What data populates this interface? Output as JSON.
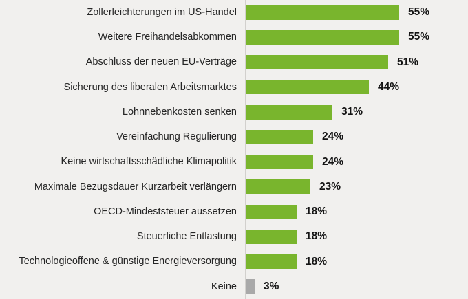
{
  "chart_data": {
    "type": "bar",
    "orientation": "horizontal",
    "title": "",
    "xlabel": "",
    "ylabel": "",
    "xlim": [
      0,
      60
    ],
    "grid": false,
    "legend": null,
    "categories": [
      "Zollerleichterungen im US-Handel",
      "Weitere Freihandelsabkommen",
      "Abschluss der neuen EU-Verträge",
      "Sicherung des liberalen Arbeitsmarktes",
      "Lohnnebenkosten senken",
      "Vereinfachung Regulierung",
      "Keine wirtschaftsschädliche Klimapolitik",
      "Maximale Bezugsdauer Kurzarbeit verlängern",
      "OECD-Mindeststeuer aussetzen",
      "Steuerliche Entlastung",
      "Technologieoffene & günstige Energieversorgung",
      "Keine"
    ],
    "values": [
      55,
      55,
      51,
      44,
      31,
      24,
      24,
      23,
      18,
      18,
      18,
      3
    ],
    "value_labels": [
      "55%",
      "55%",
      "51%",
      "44%",
      "31%",
      "24%",
      "24%",
      "23%",
      "18%",
      "18%",
      "18%",
      "3%"
    ],
    "bar_colors": [
      "#79b52d",
      "#79b52d",
      "#79b52d",
      "#79b52d",
      "#79b52d",
      "#79b52d",
      "#79b52d",
      "#79b52d",
      "#79b52d",
      "#79b52d",
      "#79b52d",
      "#a9a9a9"
    ]
  },
  "colors": {
    "bar_green": "#79b52d",
    "bar_gray": "#a9a9a9",
    "background": "#f1f0ee",
    "axis_line": "#d2d0cd",
    "label_text": "#262626",
    "value_text": "#141414"
  }
}
